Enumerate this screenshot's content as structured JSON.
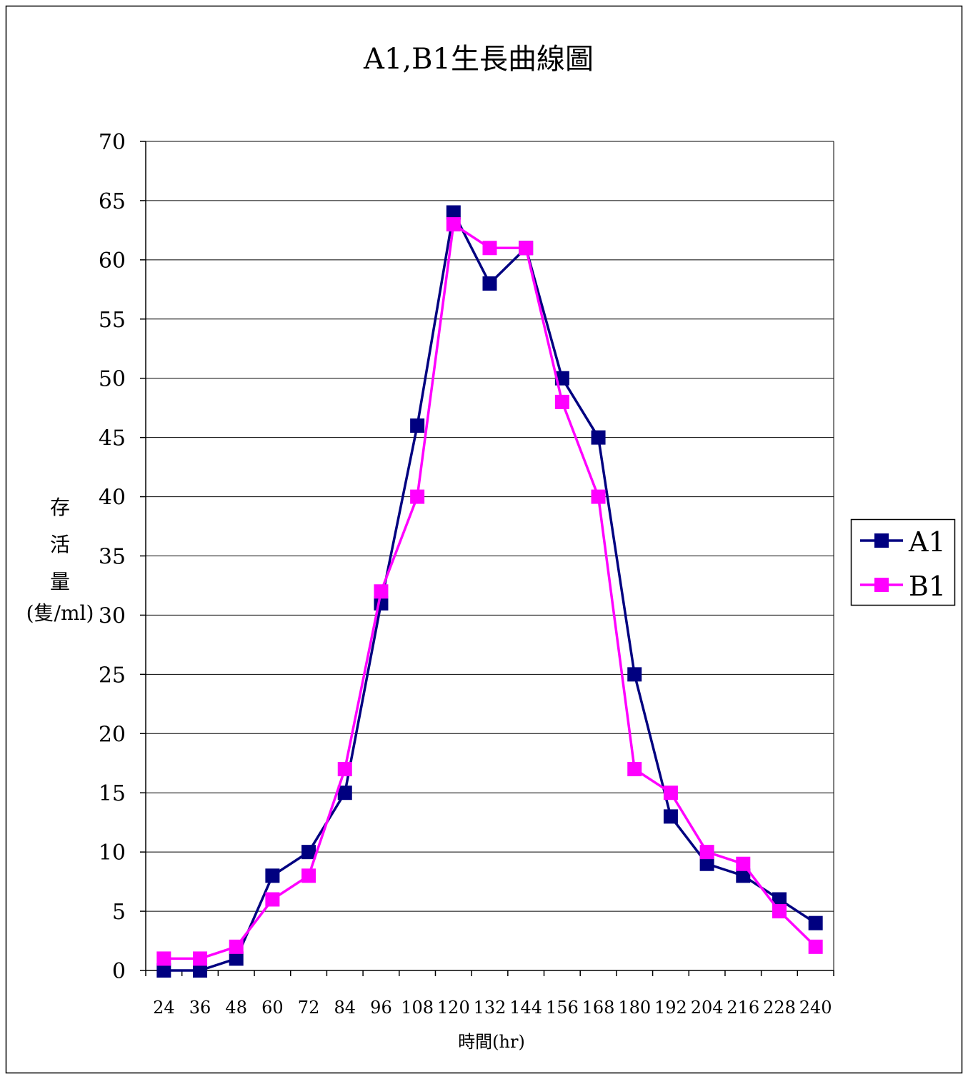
{
  "chart_data": {
    "type": "line",
    "title": "A1,B1生長曲線圖",
    "xlabel": "時間(hr)",
    "ylabel_lines": [
      "存",
      "活",
      "量",
      "(隻/ml)"
    ],
    "categories": [
      "24",
      "36",
      "48",
      "60",
      "72",
      "84",
      "96",
      "108",
      "120",
      "132",
      "144",
      "156",
      "168",
      "180",
      "192",
      "204",
      "216",
      "228",
      "240"
    ],
    "yticks": [
      0,
      5,
      10,
      15,
      20,
      25,
      30,
      35,
      40,
      45,
      50,
      55,
      60,
      65,
      70
    ],
    "ylim": [
      0,
      70
    ],
    "grid": "horizontal",
    "legend_position": "right",
    "series": [
      {
        "name": "A1",
        "color": "#000080",
        "marker": "square",
        "values": [
          0,
          0,
          1,
          8,
          10,
          15,
          31,
          46,
          64,
          58,
          61,
          50,
          45,
          25,
          13,
          9,
          8,
          6,
          4
        ]
      },
      {
        "name": "B1",
        "color": "#ff00ff",
        "marker": "square",
        "values": [
          1,
          1,
          2,
          6,
          8,
          17,
          32,
          40,
          63,
          61,
          61,
          48,
          40,
          17,
          15,
          10,
          9,
          5,
          2
        ]
      }
    ]
  }
}
